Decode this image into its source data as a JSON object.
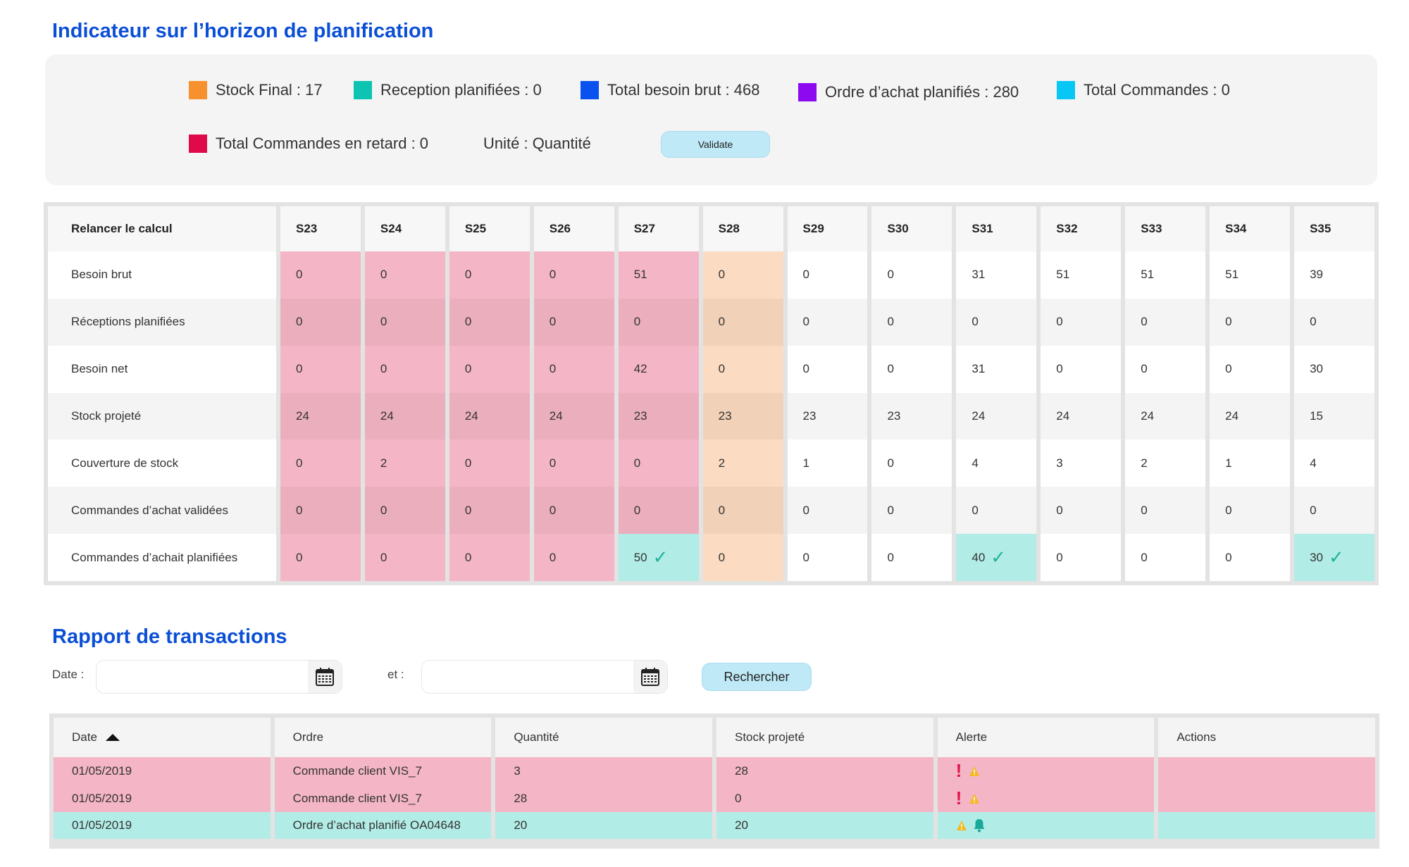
{
  "planning": {
    "title": "Indicateur sur l’horizon de planification",
    "legend": [
      {
        "label": "Stock Final : 17",
        "color": "#f7902e"
      },
      {
        "label": "Reception planifiées : 0",
        "color": "#0cc4b1"
      },
      {
        "label": "Total besoin brut : 468",
        "color": "#0a52ef"
      },
      {
        "label": "Ordre d’achat planifiés : 280",
        "color": "#8d0af0"
      },
      {
        "label": "Total Commandes : 0",
        "color": "#09c7f4"
      },
      {
        "label": "Total Commandes en retard : 0",
        "color": "#df0a4a"
      }
    ],
    "unit_label": "Unité : Quantité",
    "validate_label": "Validate",
    "table": {
      "recalc_label": "Relancer le calcul",
      "weeks": [
        "S23",
        "S24",
        "S25",
        "S26",
        "S27",
        "S28",
        "S29",
        "S30",
        "S31",
        "S32",
        "S33",
        "S34",
        "S35"
      ],
      "rows": [
        {
          "label": "Besoin brut",
          "values": [
            "0",
            "0",
            "0",
            "0",
            "51",
            "0",
            "0",
            "0",
            "31",
            "51",
            "51",
            "51",
            "39"
          ]
        },
        {
          "label": "Réceptions planifiées",
          "values": [
            "0",
            "0",
            "0",
            "0",
            "0",
            "0",
            "0",
            "0",
            "0",
            "0",
            "0",
            "0",
            "0"
          ]
        },
        {
          "label": "Besoin net",
          "values": [
            "0",
            "0",
            "0",
            "0",
            "42",
            "0",
            "0",
            "0",
            "31",
            "0",
            "0",
            "0",
            "30"
          ]
        },
        {
          "label": "Stock projeté",
          "values": [
            "24",
            "24",
            "24",
            "24",
            "23",
            "23",
            "23",
            "23",
            "24",
            "24",
            "24",
            "24",
            "15"
          ]
        },
        {
          "label": "Couverture de stock",
          "values": [
            "0",
            "2",
            "0",
            "0",
            "0",
            "2",
            "1",
            "0",
            "4",
            "3",
            "2",
            "1",
            "4"
          ]
        },
        {
          "label": "Commandes d’achat validées",
          "values": [
            "0",
            "0",
            "0",
            "0",
            "0",
            "0",
            "0",
            "0",
            "0",
            "0",
            "0",
            "0",
            "0"
          ]
        },
        {
          "label": "Commandes d’achait planifiées",
          "values": [
            "0",
            "0",
            "0",
            "0",
            "50",
            "0",
            "0",
            "0",
            "40",
            "0",
            "0",
            "0",
            "30"
          ]
        }
      ],
      "colors": {
        "late_light": "#f4b6c6",
        "late_dark": "#ebaebd",
        "warn_light": "#fbdbc1",
        "warn_dark": "#f1d1b8",
        "ok_light": "#ffffff",
        "ok_dark": "#f4f4f4",
        "planned": "#b2ece6"
      }
    }
  },
  "transactions": {
    "title": "Rapport de transactions",
    "date_label": "Date :",
    "and_label": "et :",
    "search_label": "Rechercher",
    "columns": [
      "Date",
      "Ordre",
      "Quantité",
      "Stock projeté",
      "Alerte",
      "Actions"
    ],
    "rows": [
      {
        "date": "01/05/2019",
        "order": "Commande client VIS_7",
        "quantity": "3",
        "stock": "28",
        "alerts": [
          "exclamation-icon",
          "warning-icon"
        ],
        "color": "#f4b6c6"
      },
      {
        "date": "01/05/2019",
        "order": "Commande client VIS_7",
        "quantity": "28",
        "stock": "0",
        "alerts": [
          "exclamation-icon",
          "warning-icon"
        ],
        "color": "#f4b6c6"
      },
      {
        "date": "01/05/2019",
        "order": "Ordre d’achat planifié OA04648",
        "quantity": "20",
        "stock": "20",
        "alerts": [
          "warning-icon",
          "bell-icon"
        ],
        "color": "#b2ece6"
      }
    ]
  }
}
